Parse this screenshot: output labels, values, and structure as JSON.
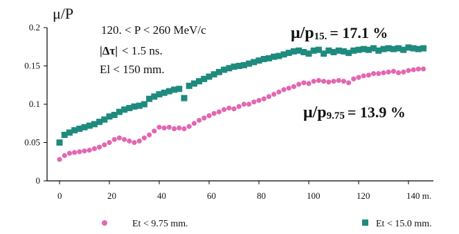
{
  "chart_data": {
    "type": "scatter",
    "ylabel": "μ/P",
    "xlim": [
      -5,
      150
    ],
    "ylim": [
      0,
      0.2
    ],
    "x_tick_labels": [
      "0",
      "20",
      "40",
      "60",
      "80",
      "100",
      "120",
      "140 m."
    ],
    "x_tick_values": [
      0,
      20,
      40,
      60,
      80,
      100,
      120,
      140
    ],
    "y_tick_labels": [
      "0",
      "0.05",
      "0.1",
      "0.15",
      "0.2"
    ],
    "y_tick_values": [
      0,
      0.05,
      0.1,
      0.15,
      0.2
    ],
    "notes": [
      "120. < P < 260 MeV/c",
      "< 1.5 ns.",
      "El < 150 mm."
    ],
    "notes_symbol": "|Δτ|",
    "series": [
      {
        "name": "Et < 15.0 mm.",
        "color": "#1f8a7e",
        "marker": "square",
        "annotation": {
          "mu": "μ/p",
          "sub": "15.",
          "value": "= 17.1 %"
        },
        "points": [
          [
            0,
            0.05
          ],
          [
            2,
            0.06
          ],
          [
            4,
            0.063
          ],
          [
            6,
            0.066
          ],
          [
            8,
            0.068
          ],
          [
            10,
            0.07
          ],
          [
            12,
            0.072
          ],
          [
            14,
            0.074
          ],
          [
            16,
            0.077
          ],
          [
            18,
            0.08
          ],
          [
            20,
            0.084
          ],
          [
            22,
            0.086
          ],
          [
            24,
            0.09
          ],
          [
            26,
            0.093
          ],
          [
            28,
            0.095
          ],
          [
            30,
            0.097
          ],
          [
            32,
            0.098
          ],
          [
            34,
            0.1
          ],
          [
            36,
            0.107
          ],
          [
            38,
            0.11
          ],
          [
            40,
            0.113
          ],
          [
            42,
            0.115
          ],
          [
            44,
            0.117
          ],
          [
            46,
            0.119
          ],
          [
            48,
            0.12
          ],
          [
            50,
            0.108
          ],
          [
            52,
            0.124
          ],
          [
            54,
            0.127
          ],
          [
            56,
            0.13
          ],
          [
            58,
            0.133
          ],
          [
            60,
            0.136
          ],
          [
            62,
            0.139
          ],
          [
            64,
            0.142
          ],
          [
            66,
            0.145
          ],
          [
            68,
            0.147
          ],
          [
            70,
            0.149
          ],
          [
            72,
            0.15
          ],
          [
            74,
            0.151
          ],
          [
            76,
            0.153
          ],
          [
            78,
            0.155
          ],
          [
            80,
            0.157
          ],
          [
            82,
            0.159
          ],
          [
            84,
            0.16
          ],
          [
            86,
            0.162
          ],
          [
            88,
            0.163
          ],
          [
            90,
            0.165
          ],
          [
            92,
            0.167
          ],
          [
            94,
            0.169
          ],
          [
            96,
            0.17
          ],
          [
            98,
            0.168
          ],
          [
            100,
            0.166
          ],
          [
            102,
            0.17
          ],
          [
            104,
            0.171
          ],
          [
            106,
            0.166
          ],
          [
            108,
            0.17
          ],
          [
            110,
            0.168
          ],
          [
            112,
            0.17
          ],
          [
            114,
            0.169
          ],
          [
            116,
            0.167
          ],
          [
            118,
            0.17
          ],
          [
            120,
            0.171
          ],
          [
            122,
            0.172
          ],
          [
            124,
            0.171
          ],
          [
            126,
            0.173
          ],
          [
            128,
            0.17
          ],
          [
            130,
            0.172
          ],
          [
            132,
            0.173
          ],
          [
            134,
            0.172
          ],
          [
            136,
            0.173
          ],
          [
            138,
            0.171
          ],
          [
            140,
            0.174
          ],
          [
            142,
            0.173
          ],
          [
            144,
            0.172
          ],
          [
            146,
            0.173
          ]
        ]
      },
      {
        "name": "Et < 9.75 mm.",
        "color": "#e267b2",
        "marker": "circle",
        "annotation": {
          "mu": "μ/p",
          "sub": "9.75",
          "value": "= 13.9 %"
        },
        "points": [
          [
            0,
            0.028
          ],
          [
            2,
            0.033
          ],
          [
            4,
            0.036
          ],
          [
            6,
            0.037
          ],
          [
            8,
            0.038
          ],
          [
            10,
            0.039
          ],
          [
            12,
            0.04
          ],
          [
            14,
            0.042
          ],
          [
            16,
            0.044
          ],
          [
            18,
            0.047
          ],
          [
            20,
            0.05
          ],
          [
            22,
            0.054
          ],
          [
            24,
            0.056
          ],
          [
            26,
            0.054
          ],
          [
            28,
            0.052
          ],
          [
            30,
            0.05
          ],
          [
            32,
            0.052
          ],
          [
            34,
            0.056
          ],
          [
            36,
            0.06
          ],
          [
            38,
            0.065
          ],
          [
            40,
            0.07
          ],
          [
            42,
            0.069
          ],
          [
            44,
            0.07
          ],
          [
            46,
            0.068
          ],
          [
            48,
            0.069
          ],
          [
            50,
            0.068
          ],
          [
            52,
            0.071
          ],
          [
            54,
            0.075
          ],
          [
            56,
            0.079
          ],
          [
            58,
            0.082
          ],
          [
            60,
            0.085
          ],
          [
            62,
            0.088
          ],
          [
            64,
            0.09
          ],
          [
            66,
            0.093
          ],
          [
            68,
            0.095
          ],
          [
            70,
            0.094
          ],
          [
            72,
            0.097
          ],
          [
            74,
            0.1
          ],
          [
            76,
            0.1
          ],
          [
            78,
            0.103
          ],
          [
            80,
            0.105
          ],
          [
            82,
            0.107
          ],
          [
            84,
            0.11
          ],
          [
            86,
            0.113
          ],
          [
            88,
            0.116
          ],
          [
            90,
            0.119
          ],
          [
            92,
            0.121
          ],
          [
            94,
            0.123
          ],
          [
            96,
            0.126
          ],
          [
            98,
            0.128
          ],
          [
            100,
            0.127
          ],
          [
            102,
            0.13
          ],
          [
            104,
            0.131
          ],
          [
            106,
            0.13
          ],
          [
            108,
            0.129
          ],
          [
            110,
            0.13
          ],
          [
            112,
            0.131
          ],
          [
            114,
            0.13
          ],
          [
            116,
            0.128
          ],
          [
            118,
            0.133
          ],
          [
            120,
            0.135
          ],
          [
            122,
            0.137
          ],
          [
            124,
            0.138
          ],
          [
            126,
            0.14
          ],
          [
            128,
            0.14
          ],
          [
            130,
            0.141
          ],
          [
            132,
            0.142
          ],
          [
            134,
            0.143
          ],
          [
            136,
            0.141
          ],
          [
            138,
            0.142
          ],
          [
            140,
            0.144
          ],
          [
            142,
            0.145
          ],
          [
            144,
            0.146
          ],
          [
            146,
            0.146
          ]
        ]
      }
    ]
  }
}
